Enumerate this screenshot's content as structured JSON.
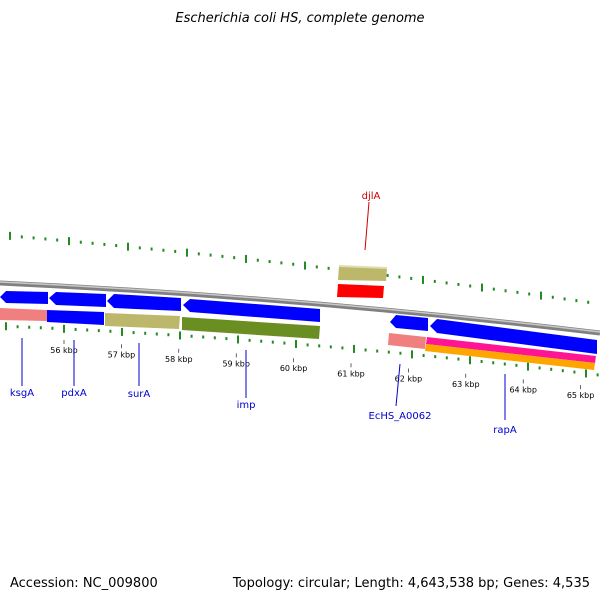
{
  "title": "Escherichia coli HS, complete genome",
  "footer": {
    "accession": "Accession: NC_009800",
    "summary": "Topology: circular; Length: 4,643,538 bp; Genes: 4,535"
  },
  "colors": {
    "backbone": "#808080",
    "gc_ticks": "#228b22",
    "forward_cds": "#0000ff",
    "reverse_cds": "#0000ff",
    "cog_pink": "#f08080",
    "cog_khaki": "#bdb76b",
    "cog_olive": "#6b8e23",
    "cog_red": "#ff0000",
    "cog_magenta": "#ff1493",
    "cog_orange": "#ffa500",
    "label_blue": "#0000cc",
    "label_red": "#cc0000"
  },
  "ticks": [
    {
      "label": "56 kbp"
    },
    {
      "label": "57 kbp"
    },
    {
      "label": "58 kbp"
    },
    {
      "label": "59 kbp"
    },
    {
      "label": "60 kbp"
    },
    {
      "label": "61 kbp"
    },
    {
      "label": "62 kbp"
    },
    {
      "label": "63 kbp"
    },
    {
      "label": "64 kbp"
    },
    {
      "label": "65 kbp"
    }
  ],
  "gene_labels": [
    {
      "name": "ksgA",
      "strand": "reverse"
    },
    {
      "name": "pdxA",
      "strand": "reverse"
    },
    {
      "name": "surA",
      "strand": "reverse"
    },
    {
      "name": "imp",
      "strand": "reverse"
    },
    {
      "name": "djlA",
      "strand": "forward"
    },
    {
      "name": "EcHS_A0062",
      "strand": "reverse"
    },
    {
      "name": "rapA",
      "strand": "reverse"
    }
  ]
}
